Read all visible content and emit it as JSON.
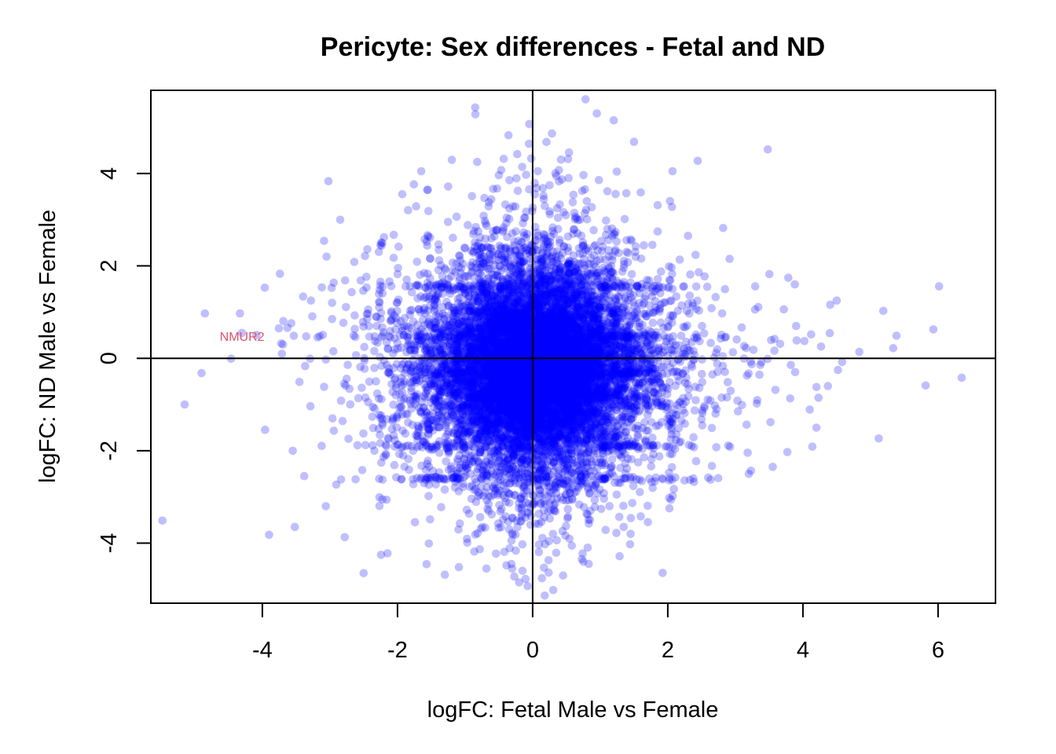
{
  "chart_data": {
    "type": "scatter",
    "title": "Pericyte: Sex differences - Fetal and ND",
    "xlabel": "logFC: Fetal Male vs Female",
    "ylabel": "logFC: ND Male vs Female",
    "xlim": [
      -5.65,
      6.85
    ],
    "ylim": [
      -5.3,
      5.8
    ],
    "xticks": [
      -4,
      -2,
      0,
      2,
      4,
      6
    ],
    "yticks": [
      -4,
      -2,
      0,
      2,
      4
    ],
    "reference_lines": {
      "x": 0,
      "y": 0
    },
    "point_color": "#0000ff",
    "point_alpha": 0.25,
    "n_points_generated": 12000,
    "notable_points": [
      {
        "x": -5.15,
        "y": -1.0
      },
      {
        "x": -4.9,
        "y": -0.32
      },
      {
        "x": -4.85,
        "y": 0.97
      },
      {
        "x": -4.3,
        "y": 0.55
      },
      {
        "x": -3.9,
        "y": -3.82
      },
      {
        "x": -3.52,
        "y": -3.65
      },
      {
        "x": -3.74,
        "y": 1.83
      },
      {
        "x": -3.05,
        "y": 2.2
      },
      {
        "x": -3.06,
        "y": -3.2
      },
      {
        "x": -2.78,
        "y": -3.87
      },
      {
        "x": -0.85,
        "y": 5.43
      },
      {
        "x": -0.05,
        "y": 5.07
      },
      {
        "x": 0.95,
        "y": 5.3
      },
      {
        "x": 1.2,
        "y": 5.15
      },
      {
        "x": 3.48,
        "y": 4.52
      },
      {
        "x": 0.42,
        "y": 4.3
      },
      {
        "x": -0.82,
        "y": 4.25
      },
      {
        "x": -0.15,
        "y": -4.6
      },
      {
        "x": -0.2,
        "y": -4.85
      },
      {
        "x": 0.75,
        "y": -4.4
      },
      {
        "x": 0.83,
        "y": -4.45
      },
      {
        "x": 1.45,
        "y": -3.8
      },
      {
        "x": 6.35,
        "y": -0.42
      },
      {
        "x": 4.5,
        "y": 1.25
      },
      {
        "x": 4.58,
        "y": -0.08
      },
      {
        "x": 4.2,
        "y": -1.5
      },
      {
        "x": 4.37,
        "y": -0.6
      },
      {
        "x": 3.2,
        "y": -2.5
      },
      {
        "x": 3.77,
        "y": -2.03
      },
      {
        "x": 3.88,
        "y": 1.6
      },
      {
        "x": 3.9,
        "y": 0.7
      },
      {
        "x": 2.3,
        "y": 2.65
      },
      {
        "x": 2.82,
        "y": 2.82
      },
      {
        "x": -2.2,
        "y": 2.62
      },
      {
        "x": -1.55,
        "y": 3.65
      },
      {
        "x": -1.25,
        "y": 3.72
      },
      {
        "x": -3.28,
        "y": 1.25
      },
      {
        "x": -3.55,
        "y": -2.0
      },
      {
        "x": -3.38,
        "y": -2.55
      },
      {
        "x": -2.62,
        "y": -2.62
      }
    ],
    "annotations": [
      {
        "text": "NMUR2",
        "x": -4.3,
        "y": 0.45,
        "color": "#df536b"
      }
    ]
  }
}
